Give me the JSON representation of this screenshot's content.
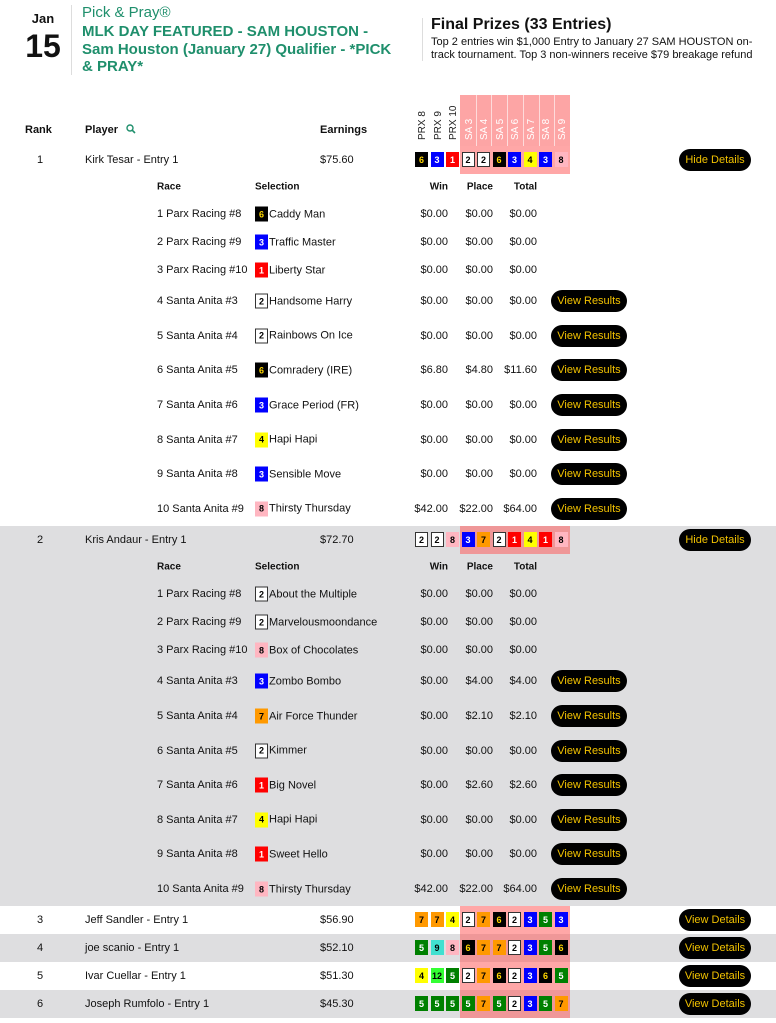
{
  "header": {
    "month": "Jan",
    "day": "15",
    "brand": "Pick & Pray®",
    "title": "MLK DAY FEATURED - SAM HOUSTON - Sam Houston (January 27) Qualifier - *PICK & PRAY*",
    "prize_title": "Final Prizes (33 Entries)",
    "prize_desc": "Top 2 entries win $1,000 Entry to January 27 SAM HOUSTON on-track tournament. Top 3 non-winners receive $79 breakage refund"
  },
  "columns": {
    "rank": "Rank",
    "player": "Player",
    "earnings": "Earnings",
    "search_icon": "search-icon",
    "races": [
      "PRX 8",
      "PRX 9",
      "PRX 10",
      "SA 3",
      "SA 4",
      "SA 5",
      "SA 6",
      "SA 7",
      "SA 8",
      "SA 9"
    ]
  },
  "detail_columns": {
    "race": "Race",
    "selection": "Selection",
    "win": "Win",
    "place": "Place",
    "total": "Total"
  },
  "labels": {
    "hide": "Hide Details",
    "view": "View Details",
    "results": "View Results"
  },
  "colors": {
    "accent": "#1f8f6c",
    "button_text": "#f2c200",
    "highlight": "#fda5a5"
  },
  "saddle_colors": {
    "1": [
      "#ff0000",
      "#fff"
    ],
    "2": [
      "#fff",
      "#000"
    ],
    "3": [
      "#0000ff",
      "#fff"
    ],
    "4": [
      "#ffff00",
      "#000"
    ],
    "5": [
      "#008000",
      "#fff"
    ],
    "6": [
      "#000",
      "#ffd700"
    ],
    "7": [
      "#ff9900",
      "#000"
    ],
    "8": [
      "#ffb6c1",
      "#000"
    ],
    "9": [
      "#40e0d0",
      "#000"
    ],
    "12": [
      "#33ff33",
      "#000"
    ]
  },
  "entries": [
    {
      "rank": "1",
      "player": "Kirk Tesar - Entry 1",
      "earnings": "$75.60",
      "picks": [
        "6",
        "3",
        "1",
        "2",
        "2",
        "6",
        "3",
        "4",
        "3",
        "8"
      ],
      "expanded": true,
      "details": [
        {
          "race": "1 Parx Racing #8",
          "num": "6",
          "horse": "Caddy Man",
          "win": "$0.00",
          "place": "$0.00",
          "total": "$0.00",
          "results": false
        },
        {
          "race": "2 Parx Racing #9",
          "num": "3",
          "horse": "Traffic Master",
          "win": "$0.00",
          "place": "$0.00",
          "total": "$0.00",
          "results": false
        },
        {
          "race": "3 Parx Racing #10",
          "num": "1",
          "horse": "Liberty Star",
          "win": "$0.00",
          "place": "$0.00",
          "total": "$0.00",
          "results": false
        },
        {
          "race": "4 Santa Anita #3",
          "num": "2",
          "horse": "Handsome Harry",
          "win": "$0.00",
          "place": "$0.00",
          "total": "$0.00",
          "results": true
        },
        {
          "race": "5 Santa Anita #4",
          "num": "2",
          "horse": "Rainbows On Ice",
          "win": "$0.00",
          "place": "$0.00",
          "total": "$0.00",
          "results": true
        },
        {
          "race": "6 Santa Anita #5",
          "num": "6",
          "horse": "Comradery (IRE)",
          "win": "$6.80",
          "place": "$4.80",
          "total": "$11.60",
          "results": true
        },
        {
          "race": "7 Santa Anita #6",
          "num": "3",
          "horse": "Grace Period (FR)",
          "win": "$0.00",
          "place": "$0.00",
          "total": "$0.00",
          "results": true
        },
        {
          "race": "8 Santa Anita #7",
          "num": "4",
          "horse": "Hapi Hapi",
          "win": "$0.00",
          "place": "$0.00",
          "total": "$0.00",
          "results": true
        },
        {
          "race": "9 Santa Anita #8",
          "num": "3",
          "horse": "Sensible Move",
          "win": "$0.00",
          "place": "$0.00",
          "total": "$0.00",
          "results": true
        },
        {
          "race": "10 Santa Anita #9",
          "num": "8",
          "horse": "Thirsty Thursday",
          "win": "$42.00",
          "place": "$22.00",
          "total": "$64.00",
          "results": true
        }
      ]
    },
    {
      "rank": "2",
      "player": "Kris Andaur - Entry 1",
      "earnings": "$72.70",
      "picks": [
        "2",
        "2",
        "8",
        "3",
        "7",
        "2",
        "1",
        "4",
        "1",
        "8"
      ],
      "expanded": true,
      "details": [
        {
          "race": "1 Parx Racing #8",
          "num": "2",
          "horse": "About the Multiple",
          "win": "$0.00",
          "place": "$0.00",
          "total": "$0.00",
          "results": false
        },
        {
          "race": "2 Parx Racing #9",
          "num": "2",
          "horse": "Marvelousmoondance",
          "win": "$0.00",
          "place": "$0.00",
          "total": "$0.00",
          "results": false
        },
        {
          "race": "3 Parx Racing #10",
          "num": "8",
          "horse": "Box of Chocolates",
          "win": "$0.00",
          "place": "$0.00",
          "total": "$0.00",
          "results": false
        },
        {
          "race": "4 Santa Anita #3",
          "num": "3",
          "horse": "Zombo Bombo",
          "win": "$0.00",
          "place": "$4.00",
          "total": "$4.00",
          "results": true
        },
        {
          "race": "5 Santa Anita #4",
          "num": "7",
          "horse": "Air Force Thunder",
          "win": "$0.00",
          "place": "$2.10",
          "total": "$2.10",
          "results": true
        },
        {
          "race": "6 Santa Anita #5",
          "num": "2",
          "horse": "Kimmer",
          "win": "$0.00",
          "place": "$0.00",
          "total": "$0.00",
          "results": true
        },
        {
          "race": "7 Santa Anita #6",
          "num": "1",
          "horse": "Big Novel",
          "win": "$0.00",
          "place": "$2.60",
          "total": "$2.60",
          "results": true
        },
        {
          "race": "8 Santa Anita #7",
          "num": "4",
          "horse": "Hapi Hapi",
          "win": "$0.00",
          "place": "$0.00",
          "total": "$0.00",
          "results": true
        },
        {
          "race": "9 Santa Anita #8",
          "num": "1",
          "horse": "Sweet Hello",
          "win": "$0.00",
          "place": "$0.00",
          "total": "$0.00",
          "results": true
        },
        {
          "race": "10 Santa Anita #9",
          "num": "8",
          "horse": "Thirsty Thursday",
          "win": "$42.00",
          "place": "$22.00",
          "total": "$64.00",
          "results": true
        }
      ]
    },
    {
      "rank": "3",
      "player": "Jeff Sandler - Entry 1",
      "earnings": "$56.90",
      "picks": [
        "7",
        "7",
        "4",
        "2",
        "7",
        "6",
        "2",
        "3",
        "5",
        "3"
      ],
      "expanded": false
    },
    {
      "rank": "4",
      "player": "joe scanio - Entry 1",
      "earnings": "$52.10",
      "picks": [
        "5",
        "9",
        "8",
        "6",
        "7",
        "7",
        "2",
        "3",
        "5",
        "6"
      ],
      "expanded": false
    },
    {
      "rank": "5",
      "player": "Ivar Cuellar - Entry 1",
      "earnings": "$51.30",
      "picks": [
        "4",
        "12",
        "5",
        "2",
        "7",
        "6",
        "2",
        "3",
        "6",
        "5"
      ],
      "expanded": false
    },
    {
      "rank": "6",
      "player": "Joseph Rumfolo - Entry 1",
      "earnings": "$45.30",
      "picks": [
        "5",
        "5",
        "5",
        "5",
        "7",
        "5",
        "2",
        "3",
        "5",
        "7"
      ],
      "expanded": false
    }
  ]
}
